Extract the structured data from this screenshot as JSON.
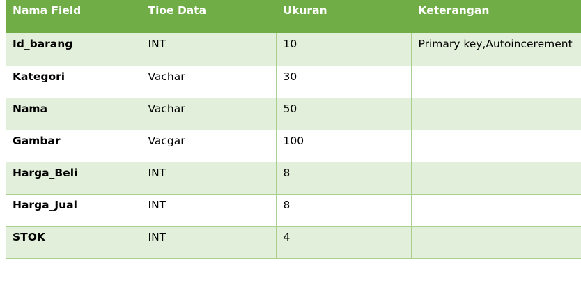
{
  "table": {
    "headers": [
      "Nama Field",
      "Tioe Data",
      "Ukuran",
      "Keterangan"
    ],
    "rows": [
      [
        "Id_barang",
        "INT",
        "10",
        "Primary key,Autoincerement"
      ],
      [
        "Kategori",
        "Vachar",
        "30",
        ""
      ],
      [
        "Nama",
        "Vachar",
        "50",
        ""
      ],
      [
        "Gambar",
        "Vacgar",
        "100",
        ""
      ],
      [
        "Harga_Beli",
        "INT",
        "8",
        ""
      ],
      [
        "Harga_Jual",
        "INT",
        "8",
        ""
      ],
      [
        "STOK",
        "INT",
        "4",
        ""
      ]
    ]
  },
  "colors": {
    "header_bg": "#70ad47",
    "header_text": "#ffffff",
    "band_bg": "#e2efda",
    "plain_bg": "#ffffff",
    "grid_line": "#a9d08e"
  }
}
